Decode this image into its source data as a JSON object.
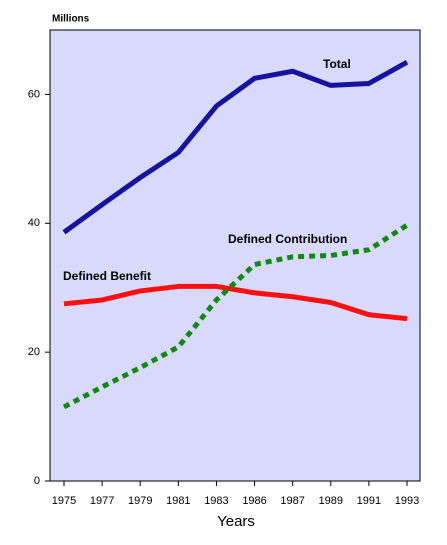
{
  "chart_data": {
    "type": "line",
    "y_unit_label": "Millions",
    "x_label": "Years",
    "categories": [
      "1975",
      "1977",
      "1979",
      "1981",
      "1983",
      "1986",
      "1987",
      "1989",
      "1991",
      "1993"
    ],
    "series": [
      {
        "name": "Total",
        "color": "#1414a0",
        "style": "solid",
        "values": [
          38.6,
          42.9,
          47.1,
          51,
          58.2,
          62.5,
          63.6,
          61.4,
          61.7,
          65
        ]
      },
      {
        "name": "Defined Benefit",
        "color": "#ff1010",
        "style": "solid",
        "values": [
          27.5,
          28.1,
          29.5,
          30.2,
          30.2,
          29.2,
          28.6,
          27.7,
          25.8,
          25.2
        ]
      },
      {
        "name": "Defined Contribution",
        "color": "#108a10",
        "style": "dashed",
        "values": [
          11.5,
          14.6,
          17.6,
          20.8,
          28.1,
          33.6,
          34.8,
          35,
          35.9,
          39.7
        ]
      }
    ],
    "ylim": [
      0,
      70
    ],
    "yticks": [
      0,
      20,
      40,
      60
    ],
    "background": "#d9d9fb"
  }
}
